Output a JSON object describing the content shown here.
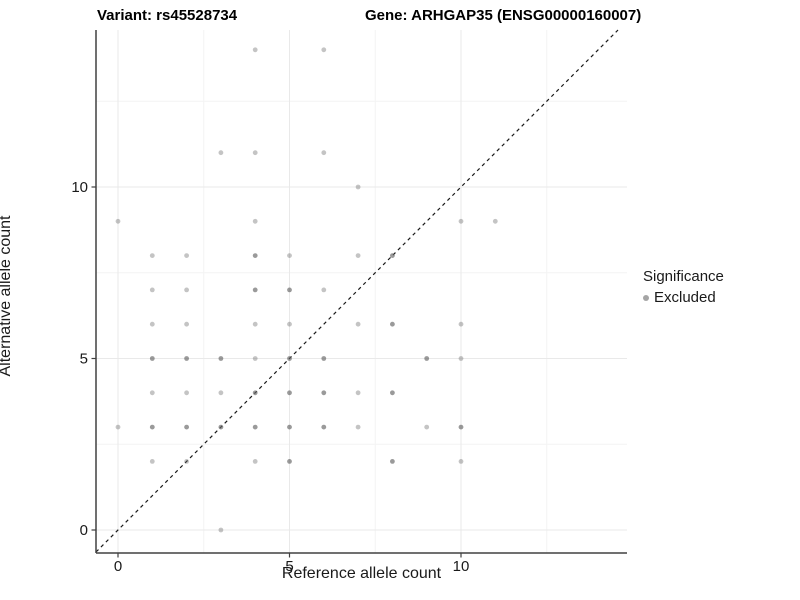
{
  "titles": {
    "left": "Variant: rs45528734",
    "right": "Gene: ARHGAP35 (ENSG00000160007)"
  },
  "axes": {
    "x": {
      "label": "Reference allele count"
    },
    "y": {
      "label": "Alternative allele count"
    }
  },
  "legend": {
    "title": "Significance",
    "items": [
      {
        "label": "Excluded",
        "color": "#a3a3a3"
      }
    ]
  },
  "colors": {
    "point_base": "#646464",
    "point_alpha_single": 0.38,
    "point_alpha_overlap": 0.65,
    "grid_major": "#e9e9e9",
    "grid_minor": "#f4f4f4",
    "axis_line": "#404040",
    "identity_line": "#1a1a1a"
  },
  "chart_data": {
    "type": "scatter",
    "title": "",
    "xlabel": "Reference allele count",
    "ylabel": "Alternative allele count",
    "xlim": [
      -0.7,
      14.7
    ],
    "ylim": [
      -0.7,
      14.7
    ],
    "x_ticks": [
      "0",
      "5",
      "10"
    ],
    "x_tick_values": [
      0,
      5,
      10
    ],
    "y_ticks": [
      "0",
      "5",
      "10"
    ],
    "y_tick_values": [
      0,
      5,
      10
    ],
    "minor_tick_values": [
      2.5,
      7.5,
      12.5
    ],
    "grid": true,
    "legend_position": "right",
    "identity_line": true,
    "series": [
      {
        "name": "Excluded",
        "note": "points are [reference_allele_count, alternative_allele_count, overplot_level]",
        "points": [
          [
            4,
            14,
            1
          ],
          [
            6,
            14,
            1
          ],
          [
            3,
            11,
            1
          ],
          [
            4,
            11,
            1
          ],
          [
            6,
            11,
            1
          ],
          [
            7,
            10,
            1
          ],
          [
            0,
            9,
            1
          ],
          [
            4,
            9,
            1
          ],
          [
            10,
            9,
            1
          ],
          [
            11,
            9,
            1
          ],
          [
            1,
            8,
            1
          ],
          [
            2,
            8,
            1
          ],
          [
            4,
            8,
            2
          ],
          [
            5,
            8,
            1
          ],
          [
            7,
            8,
            1
          ],
          [
            8,
            8,
            2
          ],
          [
            1,
            7,
            1
          ],
          [
            2,
            7,
            1
          ],
          [
            4,
            7,
            2
          ],
          [
            5,
            7,
            2
          ],
          [
            6,
            7,
            1
          ],
          [
            1,
            6,
            1
          ],
          [
            2,
            6,
            1
          ],
          [
            4,
            6,
            1
          ],
          [
            5,
            6,
            1
          ],
          [
            7,
            6,
            1
          ],
          [
            8,
            6,
            2
          ],
          [
            10,
            6,
            1
          ],
          [
            1,
            5,
            2
          ],
          [
            2,
            5,
            2
          ],
          [
            3,
            5,
            2
          ],
          [
            4,
            5,
            1
          ],
          [
            5,
            5,
            2
          ],
          [
            6,
            5,
            2
          ],
          [
            9,
            5,
            2
          ],
          [
            10,
            5,
            1
          ],
          [
            1,
            4,
            1
          ],
          [
            2,
            4,
            1
          ],
          [
            3,
            4,
            1
          ],
          [
            4,
            4,
            2
          ],
          [
            5,
            4,
            2
          ],
          [
            6,
            4,
            2
          ],
          [
            7,
            4,
            1
          ],
          [
            8,
            4,
            2
          ],
          [
            0,
            3,
            1
          ],
          [
            1,
            3,
            2
          ],
          [
            2,
            3,
            2
          ],
          [
            3,
            3,
            2
          ],
          [
            4,
            3,
            2
          ],
          [
            5,
            3,
            2
          ],
          [
            6,
            3,
            2
          ],
          [
            7,
            3,
            1
          ],
          [
            9,
            3,
            1
          ],
          [
            10,
            3,
            2
          ],
          [
            1,
            2,
            1
          ],
          [
            2,
            2,
            1
          ],
          [
            4,
            2,
            1
          ],
          [
            5,
            2,
            2
          ],
          [
            8,
            2,
            2
          ],
          [
            10,
            2,
            1
          ],
          [
            3,
            0,
            1
          ]
        ]
      }
    ]
  }
}
